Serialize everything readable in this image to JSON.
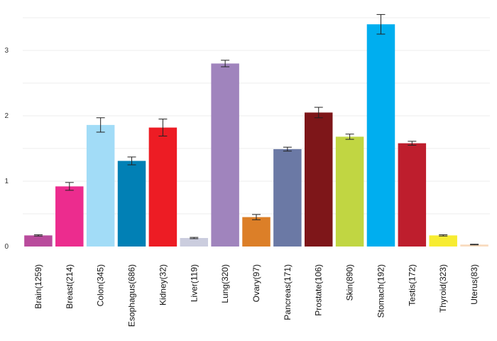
{
  "chart_data": {
    "type": "bar",
    "categories": [
      "Brain(1259)",
      "Breast(214)",
      "Colon(345)",
      "Esophagus(686)",
      "Kidney(32)",
      "Liver(119)",
      "Lung(320)",
      "Ovary(97)",
      "Pancreas(171)",
      "Prostate(106)",
      "Skin(890)",
      "Stomach(192)",
      "Testis(172)",
      "Thyroid(323)",
      "Uterus(83)"
    ],
    "values": [
      0.17,
      0.92,
      1.86,
      1.31,
      1.82,
      0.13,
      2.8,
      0.45,
      1.49,
      2.05,
      1.68,
      3.4,
      1.58,
      0.17,
      0.03
    ],
    "errors": [
      0.01,
      0.06,
      0.11,
      0.06,
      0.13,
      0.01,
      0.05,
      0.04,
      0.03,
      0.08,
      0.04,
      0.15,
      0.03,
      0.01,
      0.005
    ],
    "colors": [
      "#b94b9c",
      "#ec2c8e",
      "#a2dcf7",
      "#0180b5",
      "#ed1c24",
      "#cbcdde",
      "#a084bd",
      "#dc7f28",
      "#6b79a5",
      "#7e1619",
      "#c1d642",
      "#00aeef",
      "#be1e2d",
      "#f7ec31",
      "#f9dbbe"
    ],
    "yticks": [
      0,
      1,
      2,
      3
    ],
    "ylim": [
      0,
      3.5
    ],
    "title": "",
    "xlabel": "",
    "ylabel": "",
    "grid": true,
    "legend": "none"
  }
}
